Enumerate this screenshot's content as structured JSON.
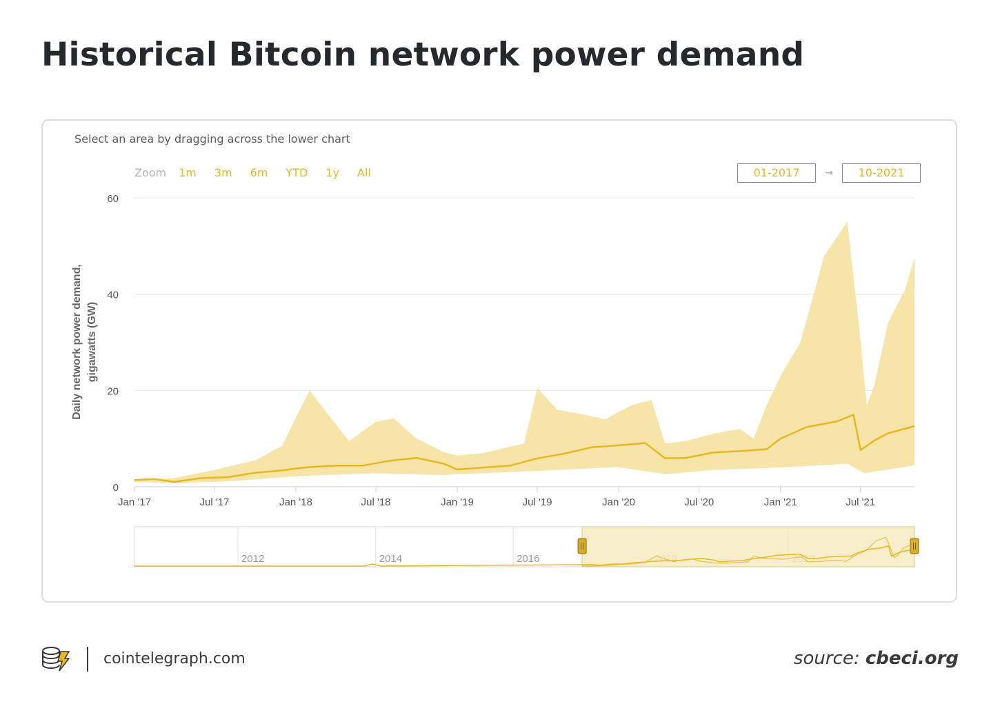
{
  "title": "Historical Bitcoin network power demand",
  "hint": "Select an area by dragging across the lower chart",
  "zoom": {
    "label": "Zoom",
    "buttons": [
      "1m",
      "3m",
      "6m",
      "YTD",
      "1y",
      "All"
    ]
  },
  "range": {
    "from": "01-2017",
    "arrow": "→",
    "to": "10-2021"
  },
  "footer": {
    "site": "cointelegraph.com",
    "source_prefix": "source:",
    "source_name": "cbeci.org"
  },
  "colors": {
    "accent": "#e8b720",
    "band": "#f6e3a3",
    "grid": "#e6e6e6",
    "navigator_fill": "#f7ecc4"
  },
  "chart_data": {
    "type": "area",
    "title": "Historical Bitcoin network power demand",
    "ylabel": "Daily network power demand, gigawatts (GW)",
    "xlabel": "",
    "ylim": [
      0,
      60
    ],
    "yticks": [
      0,
      20,
      40,
      60
    ],
    "xlim": [
      "2017-01-01",
      "2021-10-31"
    ],
    "xticks": [
      {
        "date": "2017-01-01",
        "label": "Jan '17"
      },
      {
        "date": "2017-07-01",
        "label": "Jul '17"
      },
      {
        "date": "2018-01-01",
        "label": "Jan '18"
      },
      {
        "date": "2018-07-01",
        "label": "Jul '18"
      },
      {
        "date": "2019-01-01",
        "label": "Jan '19"
      },
      {
        "date": "2019-07-01",
        "label": "Jul '19"
      },
      {
        "date": "2020-01-01",
        "label": "Jan '20"
      },
      {
        "date": "2020-07-01",
        "label": "Jul '20"
      },
      {
        "date": "2021-01-01",
        "label": "Jan '21"
      },
      {
        "date": "2021-07-01",
        "label": "Jul '21"
      }
    ],
    "estimate": {
      "x": [
        "2017-01-01",
        "2017-02-15",
        "2017-04-01",
        "2017-06-01",
        "2017-08-01",
        "2017-10-01",
        "2017-12-01",
        "2018-01-01",
        "2018-02-01",
        "2018-04-01",
        "2018-06-01",
        "2018-08-01",
        "2018-10-01",
        "2018-12-01",
        "2019-01-01",
        "2019-03-01",
        "2019-05-01",
        "2019-07-01",
        "2019-09-01",
        "2019-11-01",
        "2020-01-01",
        "2020-03-01",
        "2020-04-15",
        "2020-06-01",
        "2020-08-01",
        "2020-10-01",
        "2020-12-01",
        "2021-01-01",
        "2021-03-01",
        "2021-05-10",
        "2021-06-15",
        "2021-07-01",
        "2021-08-01",
        "2021-09-01",
        "2021-10-31"
      ],
      "y": [
        1.4,
        1.6,
        1.0,
        1.8,
        2.0,
        2.9,
        3.4,
        3.8,
        4.1,
        4.4,
        4.4,
        5.4,
        6.0,
        4.8,
        3.6,
        4.0,
        4.4,
        5.9,
        6.9,
        8.2,
        8.6,
        9.1,
        5.9,
        6.0,
        7.1,
        7.4,
        7.8,
        10.0,
        12.4,
        13.6,
        15.0,
        7.6,
        9.6,
        11.1,
        12.6
      ]
    },
    "upper": {
      "x": [
        "2017-01-01",
        "2017-04-01",
        "2017-07-01",
        "2017-10-01",
        "2017-12-01",
        "2018-01-10",
        "2018-02-01",
        "2018-03-15",
        "2018-05-01",
        "2018-07-01",
        "2018-08-10",
        "2018-10-01",
        "2018-12-01",
        "2019-01-01",
        "2019-03-01",
        "2019-06-01",
        "2019-07-01",
        "2019-08-15",
        "2019-10-15",
        "2019-12-01",
        "2020-02-01",
        "2020-03-15",
        "2020-04-15",
        "2020-06-01",
        "2020-08-01",
        "2020-10-01",
        "2020-11-01",
        "2020-12-01",
        "2021-01-01",
        "2021-02-15",
        "2021-04-10",
        "2021-05-10",
        "2021-06-01",
        "2021-06-28",
        "2021-07-15",
        "2021-08-01",
        "2021-09-01",
        "2021-10-10",
        "2021-10-31"
      ],
      "y": [
        1.5,
        1.8,
        3.5,
        5.5,
        8.5,
        16.0,
        20.0,
        15.0,
        9.5,
        13.5,
        14.2,
        10.0,
        7.2,
        6.5,
        7.0,
        9.0,
        20.5,
        16.0,
        15.0,
        14.0,
        17.0,
        18.0,
        9.0,
        9.5,
        11.0,
        12.0,
        10.0,
        17.0,
        23.0,
        30.0,
        48.0,
        52.0,
        55.0,
        33.0,
        17.0,
        21.0,
        34.0,
        41.0,
        47.5
      ]
    },
    "lower": {
      "x": [
        "2017-01-01",
        "2017-04-01",
        "2017-07-01",
        "2017-10-01",
        "2018-01-01",
        "2018-07-01",
        "2018-12-01",
        "2019-01-01",
        "2019-07-01",
        "2020-01-01",
        "2020-04-15",
        "2020-08-01",
        "2021-01-01",
        "2021-06-01",
        "2021-07-10",
        "2021-10-31"
      ],
      "y": [
        1.0,
        0.8,
        1.0,
        1.5,
        2.2,
        2.8,
        2.4,
        2.6,
        3.3,
        4.1,
        2.6,
        3.5,
        4.0,
        4.8,
        2.8,
        4.5
      ]
    },
    "navigator": {
      "xlim": [
        "2010-07-01",
        "2021-10-31"
      ],
      "year_labels": [
        "2012",
        "2014",
        "2016",
        "2018",
        "2020"
      ],
      "selected": [
        "2017-01-01",
        "2021-10-31"
      ]
    }
  }
}
